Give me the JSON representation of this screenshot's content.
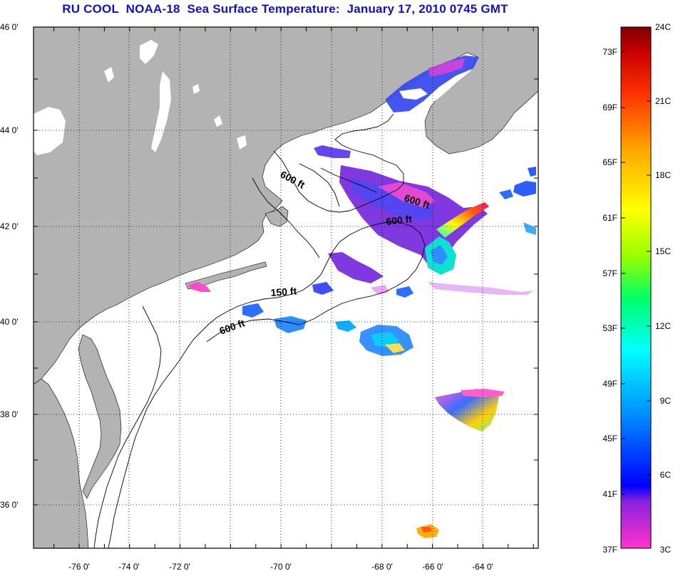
{
  "title": "RU COOL  NOAA-18  Sea Surface Temperature:  January 17, 2010 0745 GMT",
  "map": {
    "lon_labels": [
      "-76 0'",
      "-74 0'",
      "-72 0'",
      "-70 0'",
      "-68 0'",
      "-66 0'",
      "-64 0'"
    ],
    "lat_labels": [
      "46 0'",
      "44 0'",
      "42 0'",
      "40 0'",
      "38 0'",
      "36 0'"
    ],
    "land_color": "#b3b3b3",
    "contour_labels": [
      {
        "id": "c1",
        "text": "600 ft"
      },
      {
        "id": "c2",
        "text": "600 ft"
      },
      {
        "id": "c3",
        "text": "600 ft"
      },
      {
        "id": "c4",
        "text": "150 ft"
      },
      {
        "id": "c5",
        "text": "600 ft"
      }
    ]
  },
  "colorbar": {
    "fahrenheit_labels": [
      "73F",
      "69F",
      "65F",
      "61F",
      "57F",
      "53F",
      "49F",
      "45F",
      "41F",
      "37F"
    ],
    "celsius_labels": [
      "24C",
      "21C",
      "18C",
      "15C",
      "12C",
      "9C",
      "6C",
      "3C"
    ],
    "colors": [
      "#ff33cc",
      "#8822dd",
      "#0000ff",
      "#0088ff",
      "#00ffff",
      "#00ff66",
      "#99ff00",
      "#ffff00",
      "#ffaa00",
      "#ff3300",
      "#cc0000",
      "#800000"
    ]
  }
}
